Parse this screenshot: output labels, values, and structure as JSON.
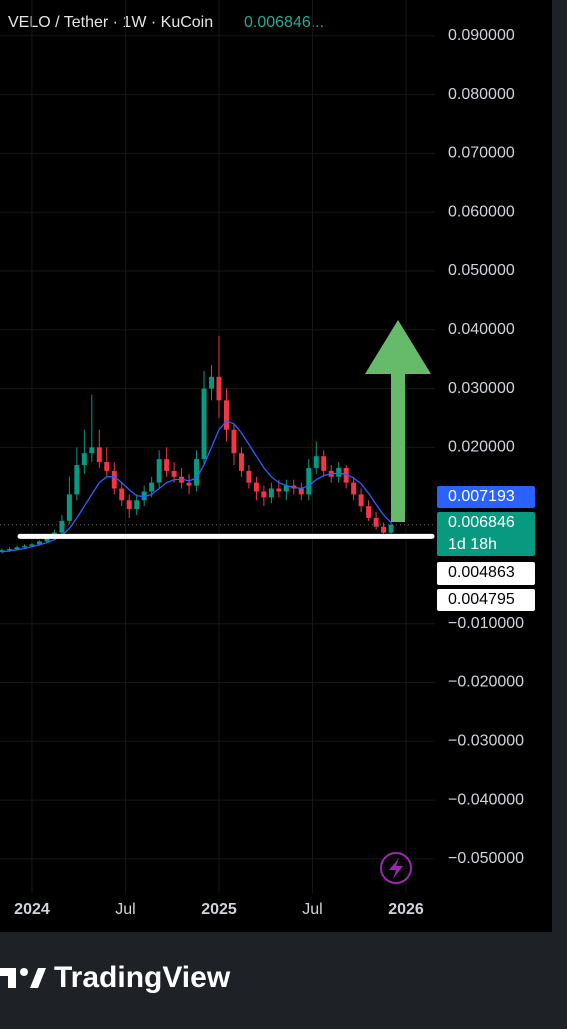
{
  "chart_data": {
    "type": "candlestick",
    "title": "VELO / Tether · 1W · KuCoin",
    "header_price": "0.006846...",
    "x": [
      2023.84,
      2023.88,
      2023.92,
      2023.96,
      2024.0,
      2024.04,
      2024.08,
      2024.12,
      2024.16,
      2024.2,
      2024.24,
      2024.28,
      2024.32,
      2024.36,
      2024.4,
      2024.44,
      2024.48,
      2024.52,
      2024.56,
      2024.6,
      2024.64,
      2024.68,
      2024.72,
      2024.76,
      2024.8,
      2024.84,
      2024.88,
      2024.92,
      2024.96,
      2025.0,
      2025.04,
      2025.08,
      2025.12,
      2025.16,
      2025.2,
      2025.24,
      2025.28,
      2025.32,
      2025.36,
      2025.4,
      2025.44,
      2025.48,
      2025.52,
      2025.56,
      2025.6,
      2025.64,
      2025.68,
      2025.72,
      2025.76,
      2025.8,
      2025.84,
      2025.88,
      2025.92
    ],
    "series": [
      {
        "up_color": "#089981",
        "down_color": "#f23645",
        "open": [
          0.0022,
          0.0025,
          0.0027,
          0.003,
          0.0032,
          0.0035,
          0.004,
          0.0045,
          0.0055,
          0.0075,
          0.012,
          0.017,
          0.019,
          0.02,
          0.0175,
          0.016,
          0.013,
          0.011,
          0.0095,
          0.011,
          0.0125,
          0.014,
          0.018,
          0.016,
          0.015,
          0.014,
          0.0135,
          0.018,
          0.03,
          0.032,
          0.028,
          0.023,
          0.019,
          0.016,
          0.014,
          0.0125,
          0.0115,
          0.013,
          0.0125,
          0.0135,
          0.013,
          0.012,
          0.0165,
          0.0185,
          0.016,
          0.015,
          0.0165,
          0.014,
          0.012,
          0.01,
          0.008,
          0.0065,
          0.0055
        ],
        "high": [
          0.0028,
          0.003,
          0.0033,
          0.0035,
          0.0037,
          0.0042,
          0.0048,
          0.006,
          0.0085,
          0.015,
          0.02,
          0.023,
          0.029,
          0.023,
          0.02,
          0.0175,
          0.014,
          0.012,
          0.012,
          0.0135,
          0.015,
          0.0195,
          0.02,
          0.0175,
          0.0165,
          0.0155,
          0.0195,
          0.033,
          0.034,
          0.039,
          0.03,
          0.024,
          0.02,
          0.017,
          0.015,
          0.0135,
          0.014,
          0.0145,
          0.0145,
          0.0145,
          0.014,
          0.018,
          0.021,
          0.0195,
          0.017,
          0.0175,
          0.017,
          0.015,
          0.013,
          0.011,
          0.009,
          0.0072,
          0.0072
        ],
        "low": [
          0.002,
          0.0022,
          0.0025,
          0.0028,
          0.003,
          0.0033,
          0.0038,
          0.0043,
          0.0052,
          0.007,
          0.011,
          0.0155,
          0.0175,
          0.0165,
          0.015,
          0.012,
          0.01,
          0.008,
          0.0085,
          0.01,
          0.0115,
          0.013,
          0.015,
          0.014,
          0.013,
          0.012,
          0.0125,
          0.017,
          0.028,
          0.025,
          0.021,
          0.017,
          0.015,
          0.013,
          0.011,
          0.01,
          0.0105,
          0.0115,
          0.011,
          0.012,
          0.011,
          0.011,
          0.0155,
          0.015,
          0.014,
          0.014,
          0.013,
          0.011,
          0.009,
          0.0075,
          0.006,
          0.0048,
          0.005
        ],
        "close": [
          0.0025,
          0.0027,
          0.003,
          0.0032,
          0.0035,
          0.004,
          0.0045,
          0.0055,
          0.0075,
          0.012,
          0.017,
          0.019,
          0.02,
          0.0175,
          0.016,
          0.013,
          0.011,
          0.0095,
          0.011,
          0.0125,
          0.014,
          0.018,
          0.016,
          0.015,
          0.014,
          0.0135,
          0.018,
          0.03,
          0.032,
          0.028,
          0.023,
          0.019,
          0.016,
          0.014,
          0.0125,
          0.0115,
          0.013,
          0.0125,
          0.0135,
          0.013,
          0.012,
          0.0165,
          0.0185,
          0.016,
          0.015,
          0.0165,
          0.014,
          0.012,
          0.01,
          0.008,
          0.0065,
          0.0055,
          0.006846
        ]
      }
    ],
    "ma": {
      "color": "#2962ff",
      "values": [
        0.0022,
        0.0024,
        0.0026,
        0.0028,
        0.0031,
        0.0034,
        0.0038,
        0.0043,
        0.005,
        0.0062,
        0.008,
        0.01,
        0.012,
        0.014,
        0.015,
        0.015,
        0.014,
        0.0128,
        0.0118,
        0.0116,
        0.012,
        0.013,
        0.014,
        0.0145,
        0.0146,
        0.0143,
        0.0148,
        0.017,
        0.02,
        0.023,
        0.0245,
        0.024,
        0.0225,
        0.0205,
        0.0185,
        0.0165,
        0.015,
        0.014,
        0.0135,
        0.0132,
        0.013,
        0.0135,
        0.0145,
        0.0152,
        0.0155,
        0.0156,
        0.0154,
        0.0148,
        0.0138,
        0.0122,
        0.0103,
        0.0085,
        0.007193
      ]
    },
    "xlim": [
      2023.829,
      2026.155
    ],
    "xticks": [
      2024,
      {
        "value": 2024.5,
        "label": "Jul"
      },
      2025,
      {
        "value": 2025.5,
        "label": "Jul"
      },
      2026
    ],
    "ylim": [
      -0.0621,
      0.0961
    ],
    "yticks": [
      {
        "value": 0.09,
        "label": "0.090000"
      },
      {
        "value": 0.08,
        "label": "0.080000"
      },
      {
        "value": 0.07,
        "label": "0.070000"
      },
      {
        "value": 0.06,
        "label": "0.060000"
      },
      {
        "value": 0.05,
        "label": "0.050000"
      },
      {
        "value": 0.04,
        "label": "0.040000"
      },
      {
        "value": 0.03,
        "label": "0.030000"
      },
      {
        "value": 0.02,
        "label": "0.020000"
      },
      {
        "value": -0.01,
        "label": "−0.010000"
      },
      {
        "value": -0.02,
        "label": "−0.020000"
      },
      {
        "value": -0.03,
        "label": "−0.030000"
      },
      {
        "value": -0.04,
        "label": "−0.040000"
      },
      {
        "value": -0.05,
        "label": "−0.050000"
      }
    ],
    "grid": true,
    "price_labels": [
      {
        "value": 0.007193,
        "color": "#2962ff"
      },
      {
        "value": 0.006846,
        "color": "#089981",
        "countdown": "1d 18h"
      },
      {
        "value": 0.004863,
        "color": "#ffffff"
      },
      {
        "value": 0.004795,
        "color": "#ffffff"
      }
    ]
  },
  "footer": {
    "brand": "TradingView"
  }
}
